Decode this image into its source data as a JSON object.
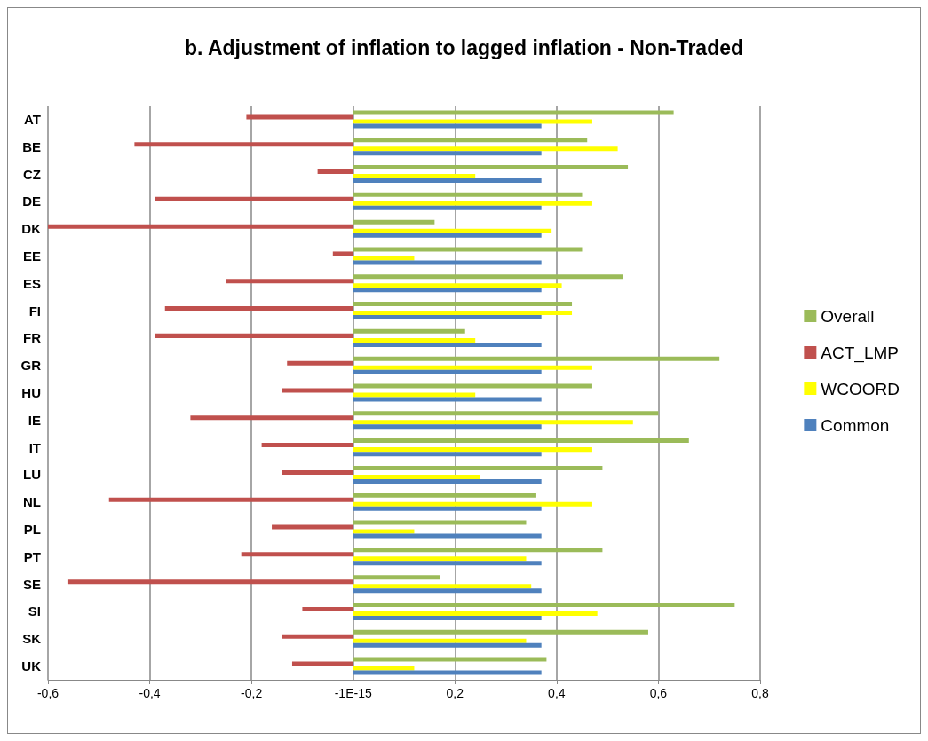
{
  "chart_data": {
    "type": "bar",
    "orientation": "horizontal",
    "title": "b. Adjustment of inflation to lagged inflation - Non-Traded",
    "categories": [
      "AT",
      "BE",
      "CZ",
      "DE",
      "DK",
      "EE",
      "ES",
      "FI",
      "FR",
      "GR",
      "HU",
      "IE",
      "IT",
      "LU",
      "NL",
      "PL",
      "PT",
      "SE",
      "SI",
      "SK",
      "UK"
    ],
    "series": [
      {
        "name": "Overall",
        "color": "#9bbb59",
        "values": [
          0.63,
          0.46,
          0.54,
          0.45,
          0.16,
          0.45,
          0.53,
          0.43,
          0.22,
          0.72,
          0.47,
          0.6,
          0.66,
          0.49,
          0.36,
          0.34,
          0.49,
          0.17,
          0.75,
          0.58,
          0.38
        ]
      },
      {
        "name": "ACT_LMP",
        "color": "#c0504d",
        "values": [
          -0.21,
          -0.43,
          -0.07,
          -0.39,
          -0.6,
          -0.04,
          -0.25,
          -0.37,
          -0.39,
          -0.13,
          -0.14,
          -0.32,
          -0.18,
          -0.14,
          -0.48,
          -0.16,
          -0.22,
          -0.56,
          -0.1,
          -0.14,
          -0.12
        ]
      },
      {
        "name": "WCOORD",
        "color": "#ffff00",
        "values": [
          0.47,
          0.52,
          0.24,
          0.47,
          0.39,
          0.12,
          0.41,
          0.43,
          0.24,
          0.47,
          0.24,
          0.55,
          0.47,
          0.25,
          0.47,
          0.12,
          0.34,
          0.35,
          0.48,
          0.34,
          0.12
        ]
      },
      {
        "name": "Common",
        "color": "#4f81bd",
        "values": [
          0.37,
          0.37,
          0.37,
          0.37,
          0.37,
          0.37,
          0.37,
          0.37,
          0.37,
          0.37,
          0.37,
          0.37,
          0.37,
          0.37,
          0.37,
          0.37,
          0.37,
          0.37,
          0.37,
          0.37,
          0.37
        ]
      }
    ],
    "xlim": [
      -0.6,
      0.8
    ],
    "xticks": [
      {
        "value": -0.6,
        "label": "-0,6"
      },
      {
        "value": -0.4,
        "label": "-0,4"
      },
      {
        "value": -0.2,
        "label": "-0,2"
      },
      {
        "value": 0,
        "label": "-1E-15"
      },
      {
        "value": 0.2,
        "label": "0,2"
      },
      {
        "value": 0.4,
        "label": "0,4"
      },
      {
        "value": 0.6,
        "label": "0,6"
      },
      {
        "value": 0.8,
        "label": "0,8"
      }
    ],
    "grid": "x",
    "legend": "right"
  }
}
